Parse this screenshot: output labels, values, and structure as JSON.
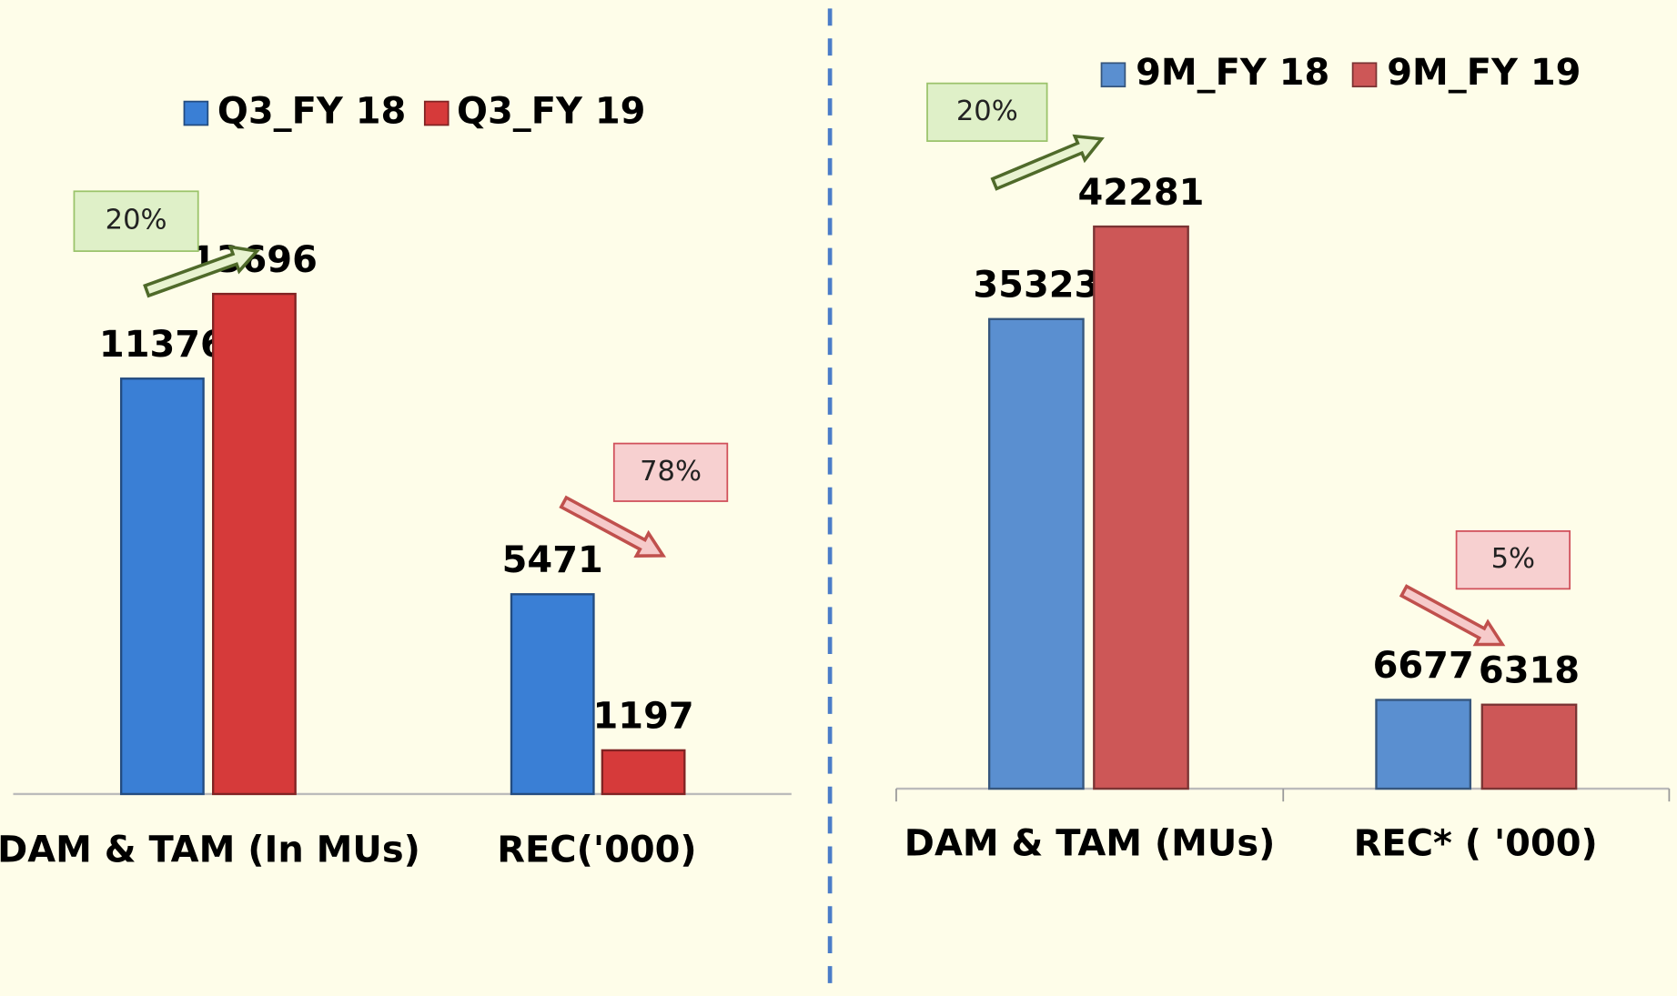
{
  "chart_data": [
    {
      "type": "bar",
      "categories": [
        "DAM & TAM (In MUs)",
        "REC('000)"
      ],
      "series": [
        {
          "name": "Q3_FY 18",
          "color": "#3a7fd5",
          "values": [
            11376,
            5471
          ]
        },
        {
          "name": "Q3_FY 19",
          "color": "#d63a3a",
          "values": [
            13696,
            1197
          ]
        }
      ],
      "annotations": [
        "20%",
        "78%"
      ]
    },
    {
      "type": "bar",
      "categories": [
        "DAM & TAM (MUs)",
        "REC* ( '000)"
      ],
      "series": [
        {
          "name": "9M_FY 18",
          "color": "#5a8fd0",
          "values": [
            35323,
            6677
          ]
        },
        {
          "name": "9M_FY 19",
          "color": "#cd5757",
          "values": [
            42281,
            6318
          ]
        }
      ],
      "annotations": [
        "20%",
        "5%"
      ]
    }
  ]
}
